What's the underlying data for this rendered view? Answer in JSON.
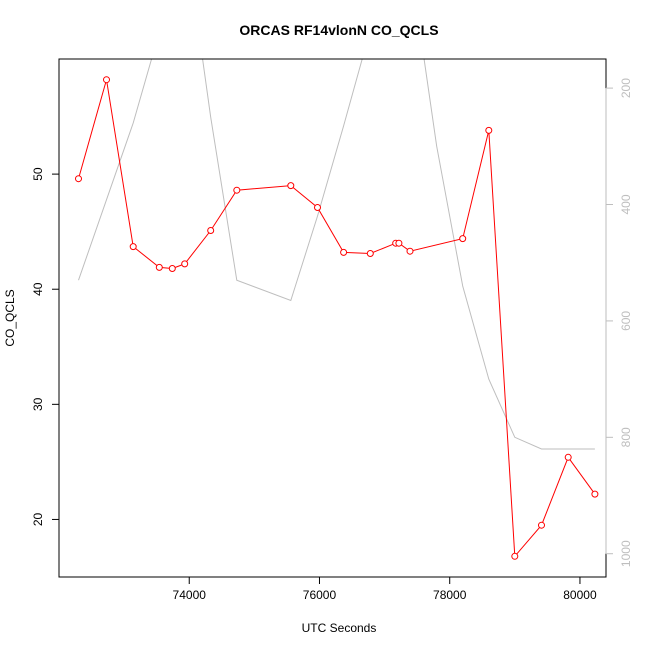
{
  "chart_data": {
    "type": "line",
    "title": "ORCAS RF14vlonN CO_QCLS",
    "xlabel": "UTC Seconds",
    "ylabel": "CO_QCLS",
    "xlim": [
      72000,
      80400
    ],
    "ylim": [
      15,
      60
    ],
    "y2lim": [
      1040,
      150
    ],
    "x_ticks": [
      "74000",
      "76000",
      "78000",
      "80000"
    ],
    "y_ticks": [
      "20",
      "30",
      "40",
      "50"
    ],
    "y2_ticks": [
      "200",
      "400",
      "600",
      "800",
      "1000"
    ],
    "colors": {
      "series": "#ff0000",
      "secondary": "#bebebe"
    },
    "series": [
      {
        "axis": "left",
        "style": "line+circles",
        "x": [
          72300,
          72730,
          73140,
          73540,
          73740,
          73930,
          74330,
          74730,
          75560,
          75970,
          76370,
          76780,
          77170,
          77220,
          77390,
          78200,
          78600,
          79000,
          79410,
          79820,
          80230
        ],
        "values": [
          49.6,
          58.2,
          43.7,
          41.9,
          41.8,
          42.2,
          45.1,
          48.6,
          49.0,
          47.1,
          43.2,
          43.1,
          44.0,
          44.0,
          43.3,
          44.4,
          53.8,
          16.8,
          19.5,
          25.4,
          22.2
        ]
      },
      {
        "axis": "right",
        "style": "line",
        "x": [
          72300,
          73140,
          73550,
          74130,
          74330,
          74730,
          75560,
          75970,
          76370,
          76780,
          77170,
          77580,
          77800,
          78200,
          78600,
          79000,
          79410,
          80230
        ],
        "values": [
          530,
          260,
          100,
          90,
          250,
          530,
          565,
          420,
          265,
          100,
          100,
          130,
          300,
          540,
          700,
          800,
          820,
          820
        ]
      }
    ]
  }
}
